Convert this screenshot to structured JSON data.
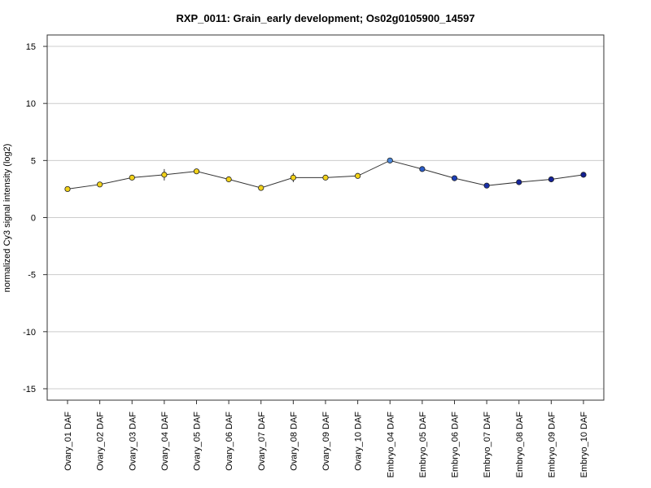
{
  "chart_data": {
    "type": "line",
    "title": "RXP_0011: Grain_early development; Os02g0105900_14597",
    "xlabel": "",
    "ylabel": "normalized Cy3 signal intensity (log2)",
    "ylim": [
      -16,
      16
    ],
    "yticks": [
      15,
      10,
      5,
      0,
      -5,
      -10,
      -15
    ],
    "grid": true,
    "categories": [
      "Ovary_01 DAF",
      "Ovary_02 DAF",
      "Ovary_03 DAF",
      "Ovary_04 DAF",
      "Ovary_05 DAF",
      "Ovary_06 DAF",
      "Ovary_07 DAF",
      "Ovary_08 DAF",
      "Ovary_09 DAF",
      "Ovary_10 DAF",
      "Embryo_04 DAF",
      "Embryo_05 DAF",
      "Embryo_06 DAF",
      "Embryo_07 DAF",
      "Embryo_08 DAF",
      "Embryo_09 DAF",
      "Embryo_10 DAF"
    ],
    "series": [
      {
        "values": [
          2.5,
          2.9,
          3.5,
          3.75,
          4.05,
          3.35,
          2.6,
          3.5,
          3.5,
          3.65,
          5.0,
          4.25,
          3.45,
          2.8,
          3.1,
          3.35,
          3.75
        ],
        "errors": [
          0.1,
          0.1,
          0.15,
          0.5,
          0.1,
          0.1,
          0.1,
          0.4,
          0.1,
          0.15,
          0.1,
          0.1,
          0.1,
          0.1,
          0.1,
          0.1,
          0.1
        ],
        "point_colors": [
          "#f2d21a",
          "#f2d21a",
          "#f2d21a",
          "#f2d21a",
          "#f2d21a",
          "#f2d21a",
          "#f2d21a",
          "#f2d21a",
          "#f2d21a",
          "#f2d21a",
          "#4a86d8",
          "#2a5cc8",
          "#1d3fb8",
          "#1a30a8",
          "#15259c",
          "#152398",
          "#132092"
        ]
      }
    ],
    "line_color": "#333333",
    "grid_color": "#cccccc"
  }
}
